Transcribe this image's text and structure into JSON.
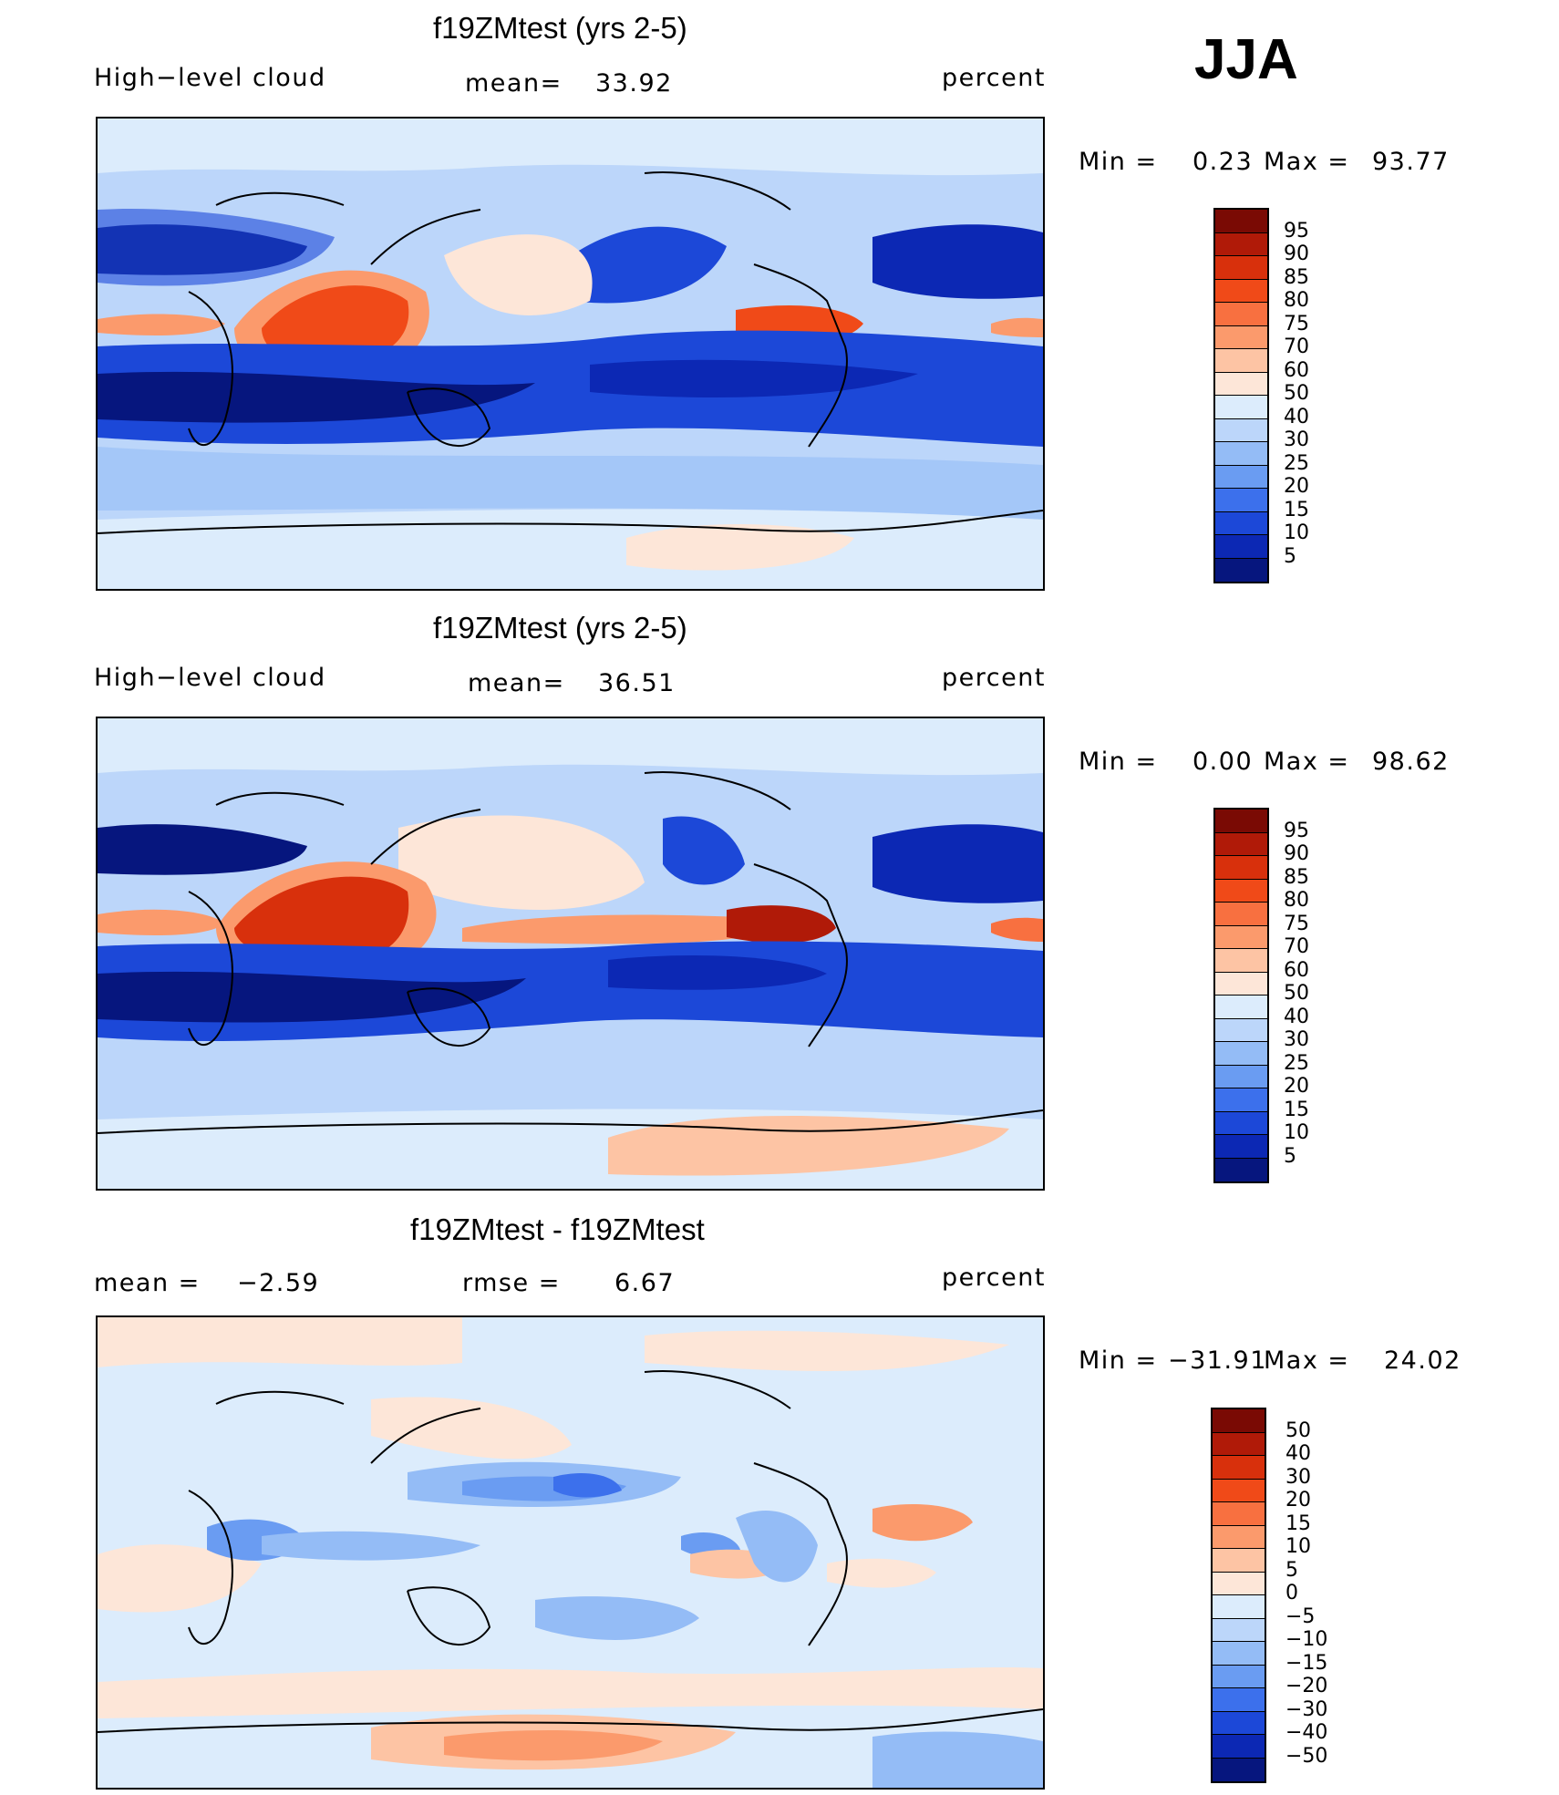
{
  "season": "JJA",
  "panels": [
    {
      "id": "top",
      "title": "f19ZMtest (yrs 2-5)",
      "left_label": "High−level cloud",
      "mid_label": "mean=",
      "mid_value": "33.92",
      "units": "percent",
      "min_label": "Min  =",
      "min_value": "0.23",
      "max_label": "Max  =",
      "max_value": "93.77",
      "scale": "abs"
    },
    {
      "id": "middle",
      "title": "f19ZMtest (yrs 2-5)",
      "left_label": "High−level cloud",
      "mid_label": "mean=",
      "mid_value": "36.51",
      "units": "percent",
      "min_label": "Min  =",
      "min_value": "0.00",
      "max_label": "Max  =",
      "max_value": "98.62",
      "scale": "abs"
    },
    {
      "id": "diff",
      "title": "f19ZMtest - f19ZMtest",
      "left_label": "mean  =",
      "left_value": "−2.59",
      "mid_label": "rmse  =",
      "mid_value": "6.67",
      "units": "percent",
      "min_label": "Min  =",
      "min_value": "−31.91",
      "max_label": "Max  =",
      "max_value": "24.02",
      "scale": "diff"
    }
  ],
  "colorbars": {
    "abs": {
      "levels": [
        "95",
        "90",
        "85",
        "80",
        "75",
        "70",
        "60",
        "50",
        "40",
        "30",
        "25",
        "20",
        "15",
        "10",
        "5"
      ],
      "colors": [
        "#7a0a04",
        "#b01a08",
        "#d8300c",
        "#f04a18",
        "#f87040",
        "#fb9a6c",
        "#fdc4a4",
        "#fde6d8",
        "#dcecfc",
        "#bcd6fa",
        "#94bcf6",
        "#6a9cf2",
        "#3c70ec",
        "#1c48d8",
        "#0c28b4",
        "#06167e"
      ]
    },
    "diff": {
      "levels": [
        "50",
        "40",
        "30",
        "20",
        "15",
        "10",
        "5",
        "0",
        "−5",
        "−10",
        "−15",
        "−20",
        "−30",
        "−40",
        "−50"
      ],
      "colors": [
        "#7a0a04",
        "#b01a08",
        "#d8300c",
        "#f04a18",
        "#f87040",
        "#fb9a6c",
        "#fdc4a4",
        "#fde6d8",
        "#dcecfc",
        "#bcd6fa",
        "#94bcf6",
        "#6a9cf2",
        "#3c70ec",
        "#1c48d8",
        "#0c28b4",
        "#06167e"
      ]
    }
  }
}
